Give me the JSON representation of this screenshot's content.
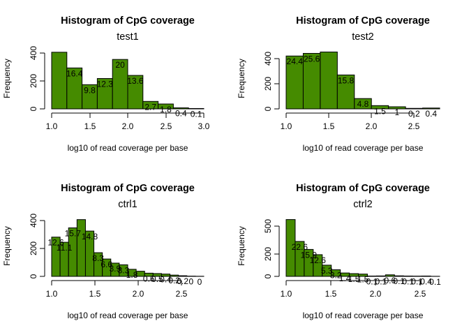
{
  "chart_data": [
    {
      "type": "bar",
      "title": "Histogram of CpG coverage",
      "subtitle": "test1",
      "xlabel": "log10 of read coverage per base",
      "ylabel": "Frequency",
      "xlim": [
        1.0,
        3.0
      ],
      "ylim": [
        0,
        450
      ],
      "x_ticks": [
        "1.0",
        "1.5",
        "2.0",
        "2.5",
        "3.0"
      ],
      "y_ticks": [
        "0",
        "200",
        "400"
      ],
      "bin_edges": [
        1.0,
        1.2,
        1.4,
        1.6,
        1.8,
        2.0,
        2.2,
        2.4,
        2.6,
        2.8,
        3.0
      ],
      "values": [
        440,
        318,
        188,
        236,
        384,
        260,
        58,
        38,
        8,
        3
      ],
      "bar_labels": [
        "",
        "16.4",
        "9.8",
        "12.3",
        "20",
        "13.6",
        "2.7",
        "1.8",
        "0.4",
        "0.1"
      ],
      "grid": false
    },
    {
      "type": "bar",
      "title": "Histogram of CpG coverage",
      "subtitle": "test2",
      "xlabel": "log10 of read coverage per base",
      "ylabel": "Frequency",
      "xlim": [
        1.0,
        2.8
      ],
      "ylim": [
        0,
        550
      ],
      "x_ticks": [
        "1.0",
        "1.5",
        "2.0",
        "2.5"
      ],
      "y_ticks": [
        "0",
        "200",
        "400"
      ],
      "bin_edges": [
        1.0,
        1.2,
        1.4,
        1.6,
        1.8,
        2.0,
        2.2,
        2.4,
        2.6,
        2.8
      ],
      "values": [
        502,
        527,
        540,
        322,
        98,
        31,
        20,
        5,
        8
      ],
      "bar_labels": [
        "24.4",
        "25.6",
        "",
        "15.8",
        "4.8",
        "1.5",
        "1",
        "0.2",
        "0.4"
      ],
      "grid": false
    },
    {
      "type": "bar",
      "title": "Histogram of CpG coverage",
      "subtitle": "ctrl1",
      "xlabel": "log10 of read coverage per base",
      "ylabel": "Frequency",
      "xlim": [
        1.0,
        2.8
      ],
      "ylim": [
        0,
        450
      ],
      "x_ticks": [
        "1.0",
        "1.5",
        "2.0",
        "2.5"
      ],
      "y_ticks": [
        "0",
        "200",
        "400"
      ],
      "bin_edges": [
        1.0,
        1.1,
        1.2,
        1.3,
        1.4,
        1.5,
        1.6,
        1.7,
        1.8,
        1.9,
        2.0,
        2.1,
        2.2,
        2.3,
        2.4,
        2.5,
        2.6,
        2.7,
        2.8
      ],
      "values": [
        305,
        265,
        377,
        441,
        352,
        184,
        135,
        103,
        90,
        55,
        40,
        25,
        22,
        18,
        10,
        5,
        2,
        1
      ],
      "bar_labels": [
        "12.6",
        "11.1",
        "15.7",
        "",
        "14.8",
        "8.3",
        "6.6",
        "3.9",
        "3.3",
        "1.8",
        "",
        "0.6",
        "0.5",
        "0.4",
        "0.2",
        "0.2",
        "0",
        "0"
      ],
      "grid": false
    },
    {
      "type": "bar",
      "title": "Histogram of CpG coverage",
      "subtitle": "ctrl2",
      "xlabel": "log10 of read coverage per base",
      "ylabel": "Frequency",
      "xlim": [
        1.0,
        2.7
      ],
      "ylim": [
        0,
        630
      ],
      "x_ticks": [
        "1.0",
        "1.5",
        "2.0",
        "2.5"
      ],
      "y_ticks": [
        "0",
        "200",
        "500"
      ],
      "bin_edges": [
        1.0,
        1.1,
        1.2,
        1.3,
        1.4,
        1.5,
        1.6,
        1.7,
        1.8,
        1.9,
        2.0,
        2.1,
        2.2,
        2.3,
        2.4,
        2.5,
        2.6,
        2.7
      ],
      "values": [
        618,
        380,
        293,
        236,
        122,
        72,
        37,
        30,
        25,
        4,
        5,
        17,
        6,
        4,
        3,
        4,
        1
      ],
      "bar_labels": [
        "",
        "22.6",
        "15.9",
        "12.6",
        "5.3",
        "3.2",
        "1.4",
        "1.5",
        "1.5",
        "0.1",
        "0.1",
        "0.6",
        "0.1",
        "0.1",
        "0.1",
        "0.4",
        "0.1"
      ],
      "grid": false
    }
  ]
}
